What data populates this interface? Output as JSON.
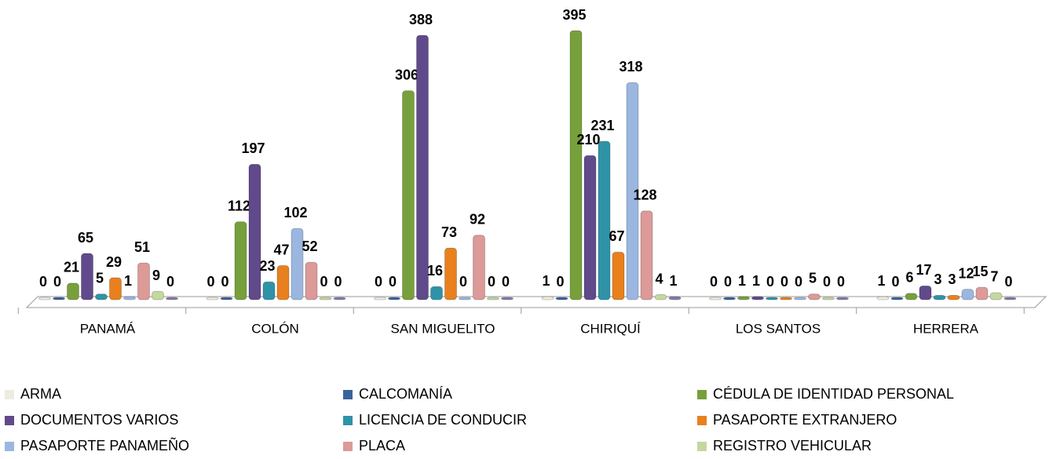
{
  "chart_data": {
    "type": "bar",
    "categories": [
      "PANAMÁ",
      "COLÓN",
      "SAN MIGUELITO",
      "CHIRIQUÍ",
      "LOS SANTOS",
      "HERRERA"
    ],
    "series": [
      {
        "name": "ARMA",
        "color": "#eeece1",
        "values": [
          0,
          0,
          0,
          1,
          0,
          1
        ]
      },
      {
        "name": "CALCOMANÍA",
        "color": "#3a639c",
        "values": [
          0,
          0,
          0,
          0,
          0,
          0
        ]
      },
      {
        "name": "CÉDULA DE IDENTIDAD PERSONAL",
        "color": "#77a03c",
        "values": [
          21,
          112,
          306,
          395,
          1,
          6
        ]
      },
      {
        "name": "DOCUMENTOS VARIOS",
        "color": "#604a8b",
        "values": [
          65,
          197,
          388,
          210,
          1,
          17
        ]
      },
      {
        "name": "LICENCIA DE CONDUCIR",
        "color": "#2f93a8",
        "values": [
          5,
          23,
          16,
          231,
          0,
          3
        ]
      },
      {
        "name": "PASAPORTE EXTRANJERO",
        "color": "#e8801e",
        "values": [
          29,
          47,
          73,
          67,
          0,
          3
        ]
      },
      {
        "name": "PASAPORTE PANAMEÑO",
        "color": "#9bb7e0",
        "values": [
          1,
          102,
          0,
          318,
          0,
          12
        ]
      },
      {
        "name": "PLACA",
        "color": "#dc9a98",
        "values": [
          51,
          52,
          92,
          128,
          5,
          15
        ]
      },
      {
        "name": "REGISTRO VEHICULAR",
        "color": "#c3d89e",
        "values": [
          9,
          0,
          0,
          4,
          0,
          7
        ]
      },
      {
        "color": "#8a78a8",
        "values": [
          0,
          0,
          0,
          1,
          0,
          0
        ]
      }
    ]
  }
}
